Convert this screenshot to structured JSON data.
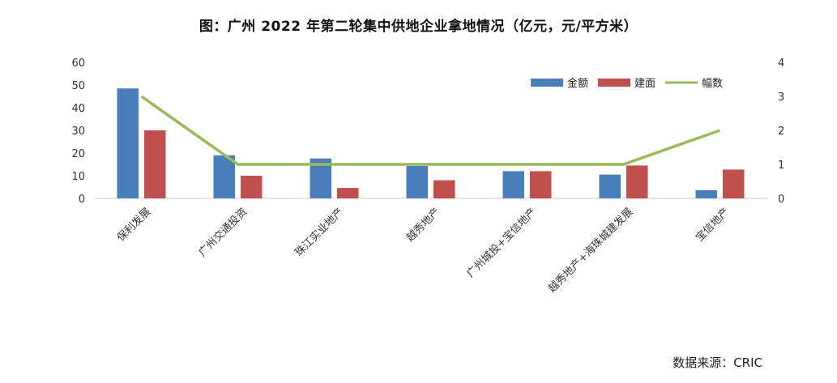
{
  "chart_data": {
    "type": "bar",
    "title": "图：广州 2022 年第二轮集中供地企业拿地情况（亿元，元/平方米）",
    "categories": [
      "保利发展",
      "广州交通投资",
      "珠江实业地产",
      "越秀地产",
      "广州城投+宝信地产",
      "越秀地产+海珠城建发展",
      "宝信地产"
    ],
    "series": [
      {
        "name": "金额",
        "type": "bar",
        "axis": "left",
        "color": "#4a7ebb",
        "values": [
          48.5,
          19,
          17.6,
          14.3,
          12,
          10.5,
          3.6
        ]
      },
      {
        "name": "建面",
        "type": "bar",
        "axis": "left",
        "color": "#c0504d",
        "values": [
          30,
          10,
          4.6,
          8,
          12,
          14.5,
          12.7
        ]
      },
      {
        "name": "幅数",
        "type": "line",
        "axis": "right",
        "color": "#9bbb59",
        "values": [
          3,
          1,
          1,
          1,
          1,
          1,
          2
        ]
      }
    ],
    "y_left": {
      "ylim": [
        0,
        60
      ],
      "ticks": [
        "0",
        "10",
        "20",
        "30",
        "40",
        "50",
        "60"
      ]
    },
    "y_right": {
      "ylim": [
        0,
        4
      ],
      "ticks": [
        "0",
        "1",
        "2",
        "3",
        "4"
      ]
    },
    "xlabel": "",
    "ylabel": "",
    "grid": false,
    "legend": "top-right"
  },
  "source": "数据来源：CRIC"
}
